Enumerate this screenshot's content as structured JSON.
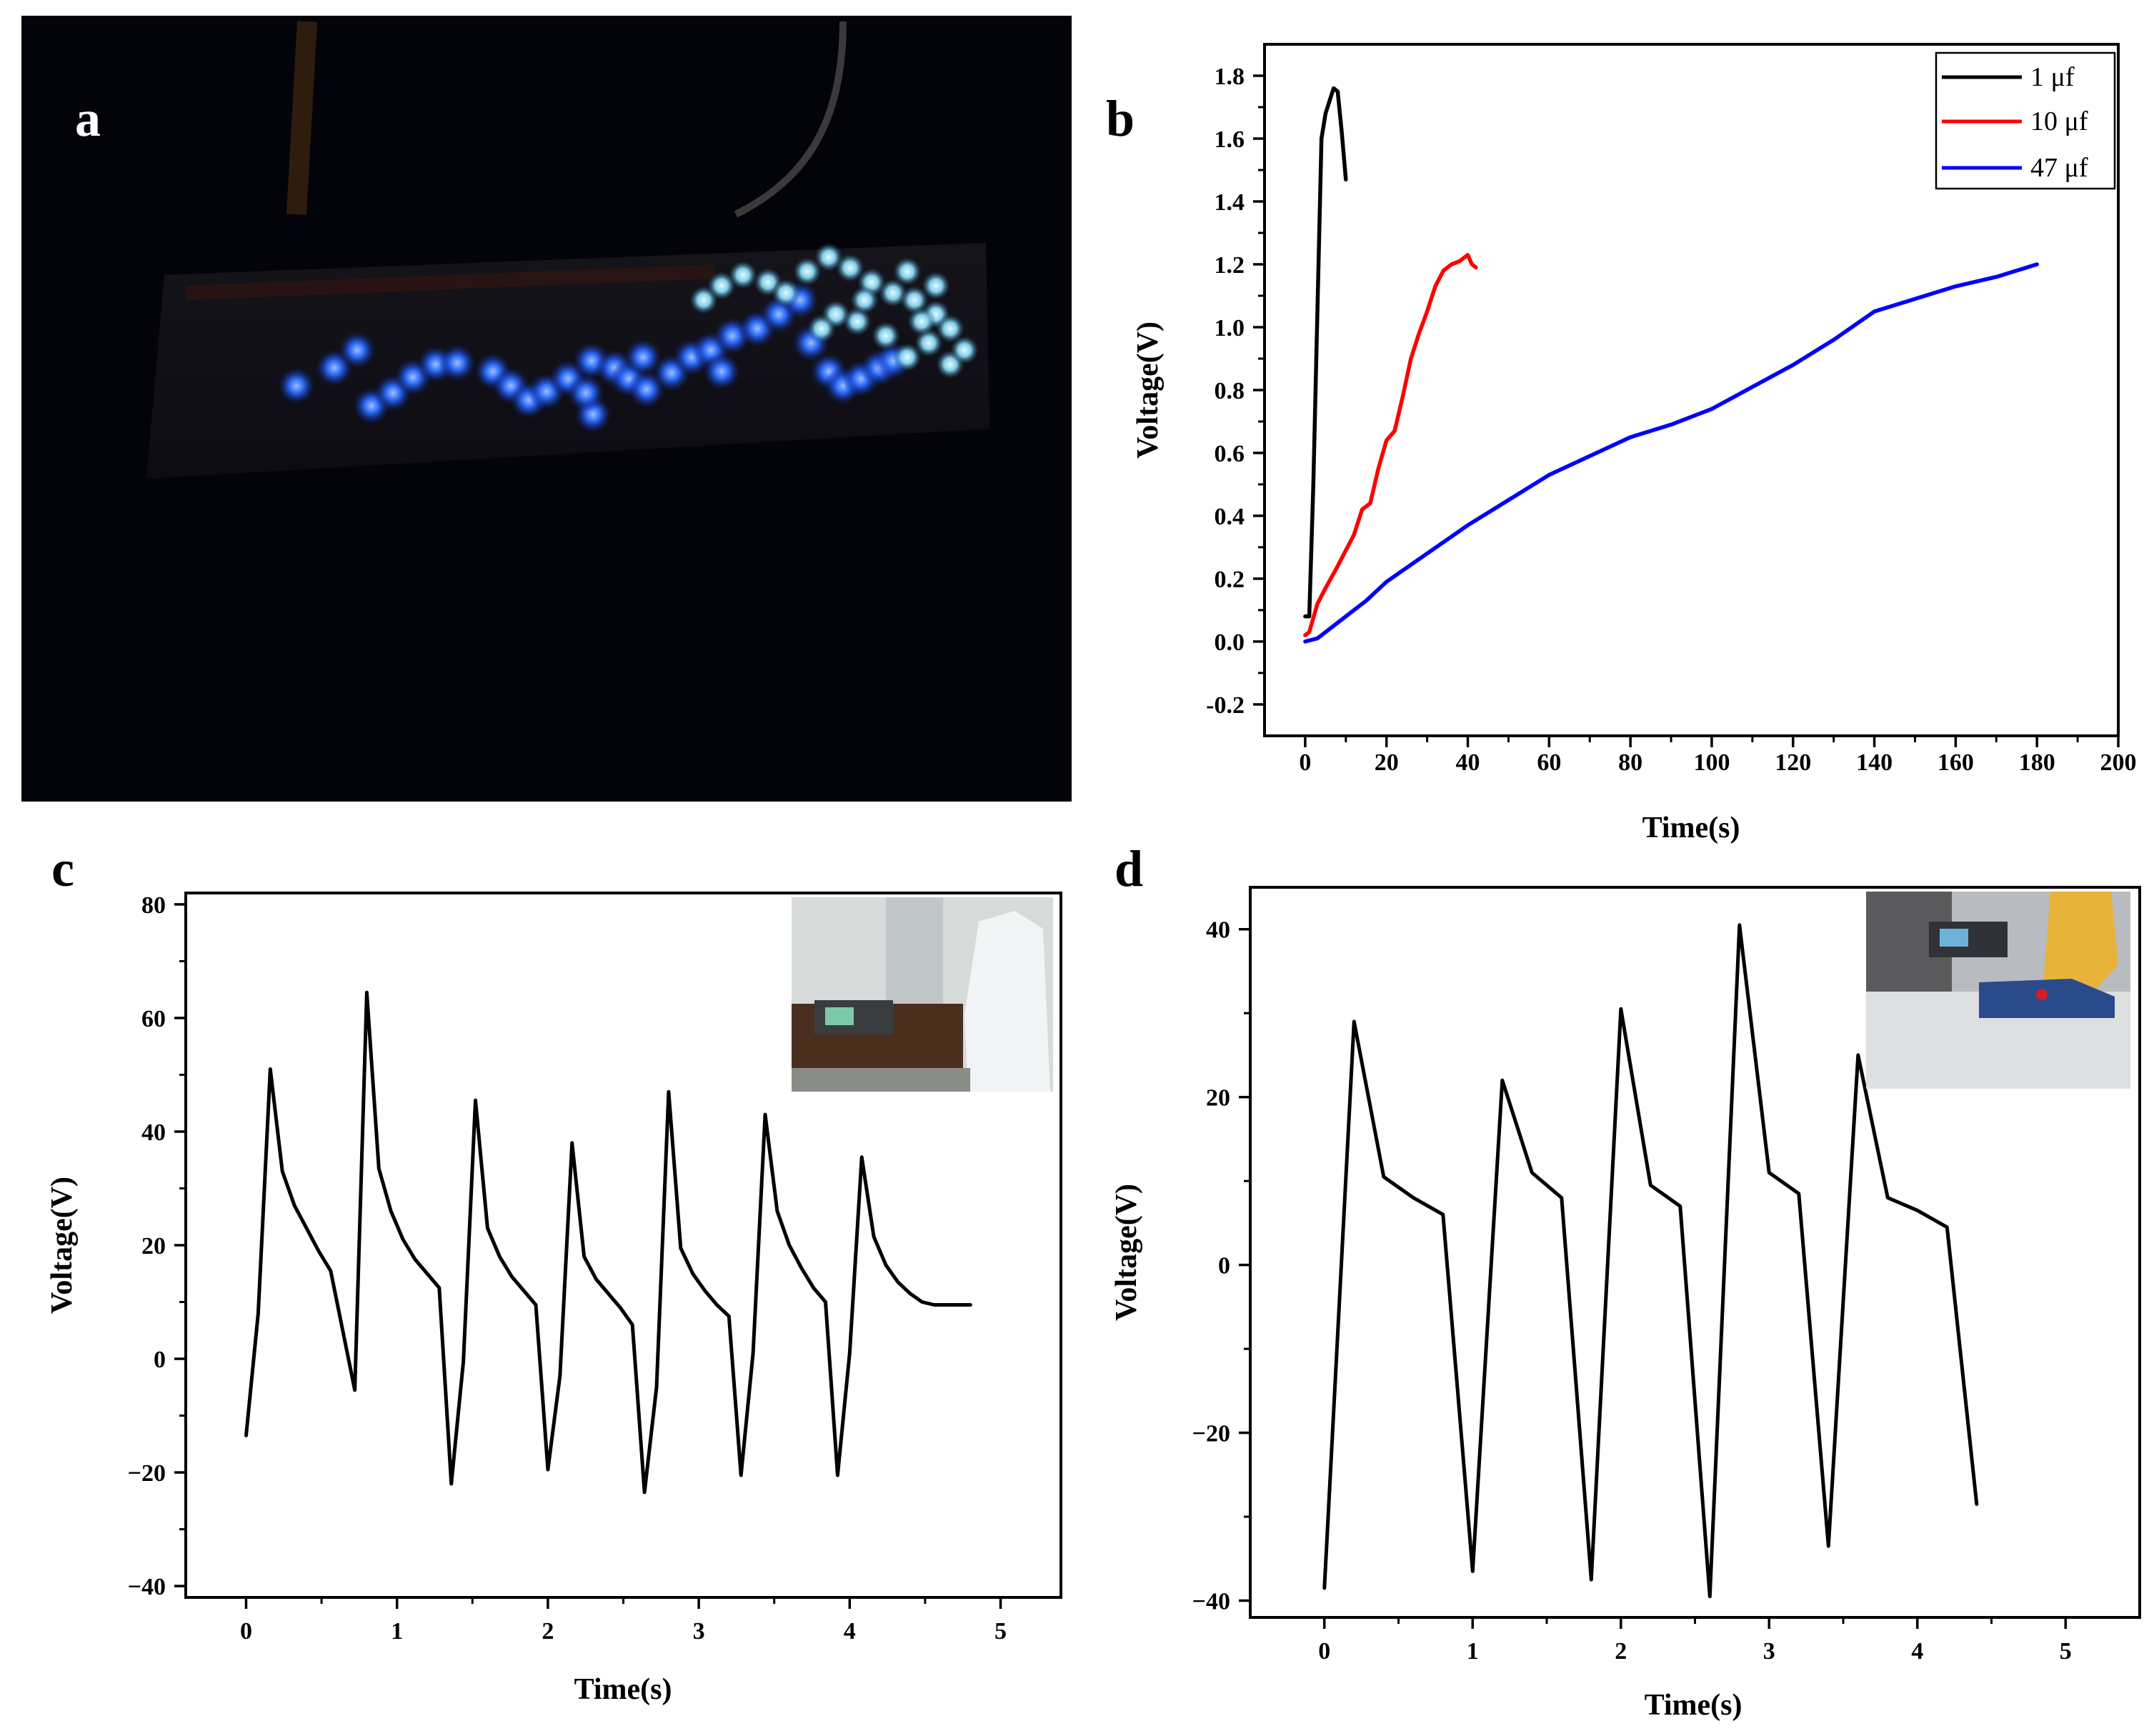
{
  "panels": {
    "a": {
      "label": "a"
    },
    "b": {
      "label": "b"
    },
    "c": {
      "label": "c"
    },
    "d": {
      "label": "d"
    }
  },
  "colors": {
    "black": "#000000",
    "red": "#ff0000",
    "blue": "#0000ff",
    "led_blue": "#2a6bff",
    "led_cyan": "#8fe3ff",
    "photo_bg": "#03040a"
  },
  "chart_data": [
    {
      "id": "b",
      "type": "line",
      "xlabel": "Time(s)",
      "ylabel": "Voltage(V)",
      "xlim": [
        -10,
        200
      ],
      "ylim": [
        -0.3,
        1.9
      ],
      "xticks": [
        0,
        20,
        40,
        60,
        80,
        100,
        120,
        140,
        160,
        180,
        200
      ],
      "yticks": [
        -0.2,
        0.0,
        0.2,
        0.4,
        0.6,
        0.8,
        1.0,
        1.2,
        1.4,
        1.6,
        1.8
      ],
      "ytick_labels": [
        "-0.2",
        "0.0",
        "0.2",
        "0.4",
        "0.6",
        "0.8",
        "1.0",
        "1.2",
        "1.4",
        "1.6",
        "1.8"
      ],
      "legend_position": "top-right",
      "series": [
        {
          "name": "1 μf",
          "color": "#000000",
          "x": [
            0,
            1,
            2,
            3,
            4,
            5,
            6,
            7,
            8,
            9,
            10
          ],
          "y": [
            0.08,
            0.08,
            0.5,
            1.05,
            1.6,
            1.68,
            1.72,
            1.76,
            1.75,
            1.62,
            1.47
          ]
        },
        {
          "name": "10 μf",
          "color": "#ff0000",
          "x": [
            0,
            1,
            3,
            5,
            8,
            12,
            14,
            16,
            18,
            20,
            22,
            24,
            26,
            28,
            30,
            32,
            34,
            36,
            38,
            40,
            41,
            42
          ],
          "y": [
            0.02,
            0.03,
            0.12,
            0.17,
            0.24,
            0.34,
            0.42,
            0.44,
            0.55,
            0.64,
            0.67,
            0.78,
            0.9,
            0.98,
            1.05,
            1.13,
            1.18,
            1.2,
            1.21,
            1.23,
            1.2,
            1.19
          ]
        },
        {
          "name": "47 μf",
          "color": "#0000ff",
          "x": [
            0,
            3,
            6,
            10,
            15,
            20,
            30,
            40,
            50,
            60,
            70,
            80,
            90,
            100,
            110,
            120,
            130,
            140,
            150,
            160,
            170,
            180
          ],
          "y": [
            0.0,
            0.01,
            0.04,
            0.08,
            0.13,
            0.19,
            0.28,
            0.37,
            0.45,
            0.53,
            0.59,
            0.65,
            0.69,
            0.74,
            0.81,
            0.88,
            0.96,
            1.05,
            1.09,
            1.13,
            1.16,
            1.2
          ]
        }
      ]
    },
    {
      "id": "c",
      "type": "line",
      "xlabel": "Time(s)",
      "ylabel": "Voltage(V)",
      "xlim": [
        -0.4,
        5.4
      ],
      "ylim": [
        -42,
        82
      ],
      "xticks": [
        0,
        1,
        2,
        3,
        4,
        5
      ],
      "yticks": [
        -40,
        -20,
        0,
        20,
        40,
        60,
        80
      ],
      "ytick_labels": [
        "−40",
        "−20",
        "0",
        "20",
        "40",
        "60",
        "80"
      ],
      "inset": "person in lab coat beside voltmeter",
      "series": [
        {
          "name": "voltage",
          "color": "#000000",
          "x": [
            0.0,
            0.08,
            0.16,
            0.24,
            0.32,
            0.4,
            0.48,
            0.56,
            0.64,
            0.72,
            0.8,
            0.88,
            0.96,
            1.04,
            1.12,
            1.2,
            1.28,
            1.36,
            1.44,
            1.52,
            1.6,
            1.68,
            1.76,
            1.84,
            1.92,
            2.0,
            2.08,
            2.16,
            2.24,
            2.32,
            2.4,
            2.48,
            2.56,
            2.64,
            2.72,
            2.8,
            2.88,
            2.96,
            3.04,
            3.12,
            3.2,
            3.28,
            3.36,
            3.44,
            3.52,
            3.6,
            3.68,
            3.76,
            3.84,
            3.92,
            4.0,
            4.08,
            4.16,
            4.24,
            4.32,
            4.4,
            4.48,
            4.56,
            4.64,
            4.72,
            4.8
          ],
          "y": [
            -13.5,
            8,
            51,
            33,
            27,
            23,
            19,
            15.5,
            5,
            -5.5,
            64.5,
            33.5,
            26,
            21,
            17.5,
            15,
            12.5,
            -22,
            -0.5,
            45.5,
            23,
            18,
            14.5,
            12,
            9.5,
            -19.5,
            -3,
            38,
            18,
            14,
            11.5,
            9,
            6,
            -23.5,
            -5,
            47,
            19.5,
            15,
            12,
            9.5,
            7.5,
            -20.5,
            1,
            43,
            26,
            20,
            16,
            12.5,
            10,
            -20.5,
            1,
            35.5,
            21.5,
            16.5,
            13.5,
            11.5,
            10,
            9.5,
            9.5,
            9.5,
            9.5
          ]
        }
      ]
    },
    {
      "id": "d",
      "type": "line",
      "xlabel": "Time(s)",
      "ylabel": "Voltage(V)",
      "xlim": [
        -0.5,
        5.5
      ],
      "ylim": [
        -42,
        45
      ],
      "xticks": [
        0,
        1,
        2,
        3,
        4,
        5
      ],
      "yticks": [
        -40,
        -20,
        0,
        20,
        40
      ],
      "ytick_labels": [
        "−40",
        "−20",
        "0",
        "20",
        "40"
      ],
      "inset": "foot in shoe stepping near voltmeter",
      "series": [
        {
          "name": "voltage",
          "color": "#000000",
          "x": [
            0.0,
            0.2,
            0.4,
            0.6,
            0.8,
            1.0,
            1.2,
            1.4,
            1.6,
            1.8,
            2.0,
            2.2,
            2.4,
            2.6,
            2.8,
            3.0,
            3.2,
            3.4,
            3.6,
            3.8,
            4.0,
            4.2,
            4.4
          ],
          "y": [
            -38.5,
            29,
            10.5,
            8,
            6,
            -36.5,
            22,
            11,
            8,
            -37.5,
            30.5,
            9.5,
            7,
            -39.5,
            40.5,
            11,
            8.5,
            -33.5,
            25,
            8,
            6.5,
            4.5,
            -28.5
          ]
        }
      ]
    }
  ]
}
